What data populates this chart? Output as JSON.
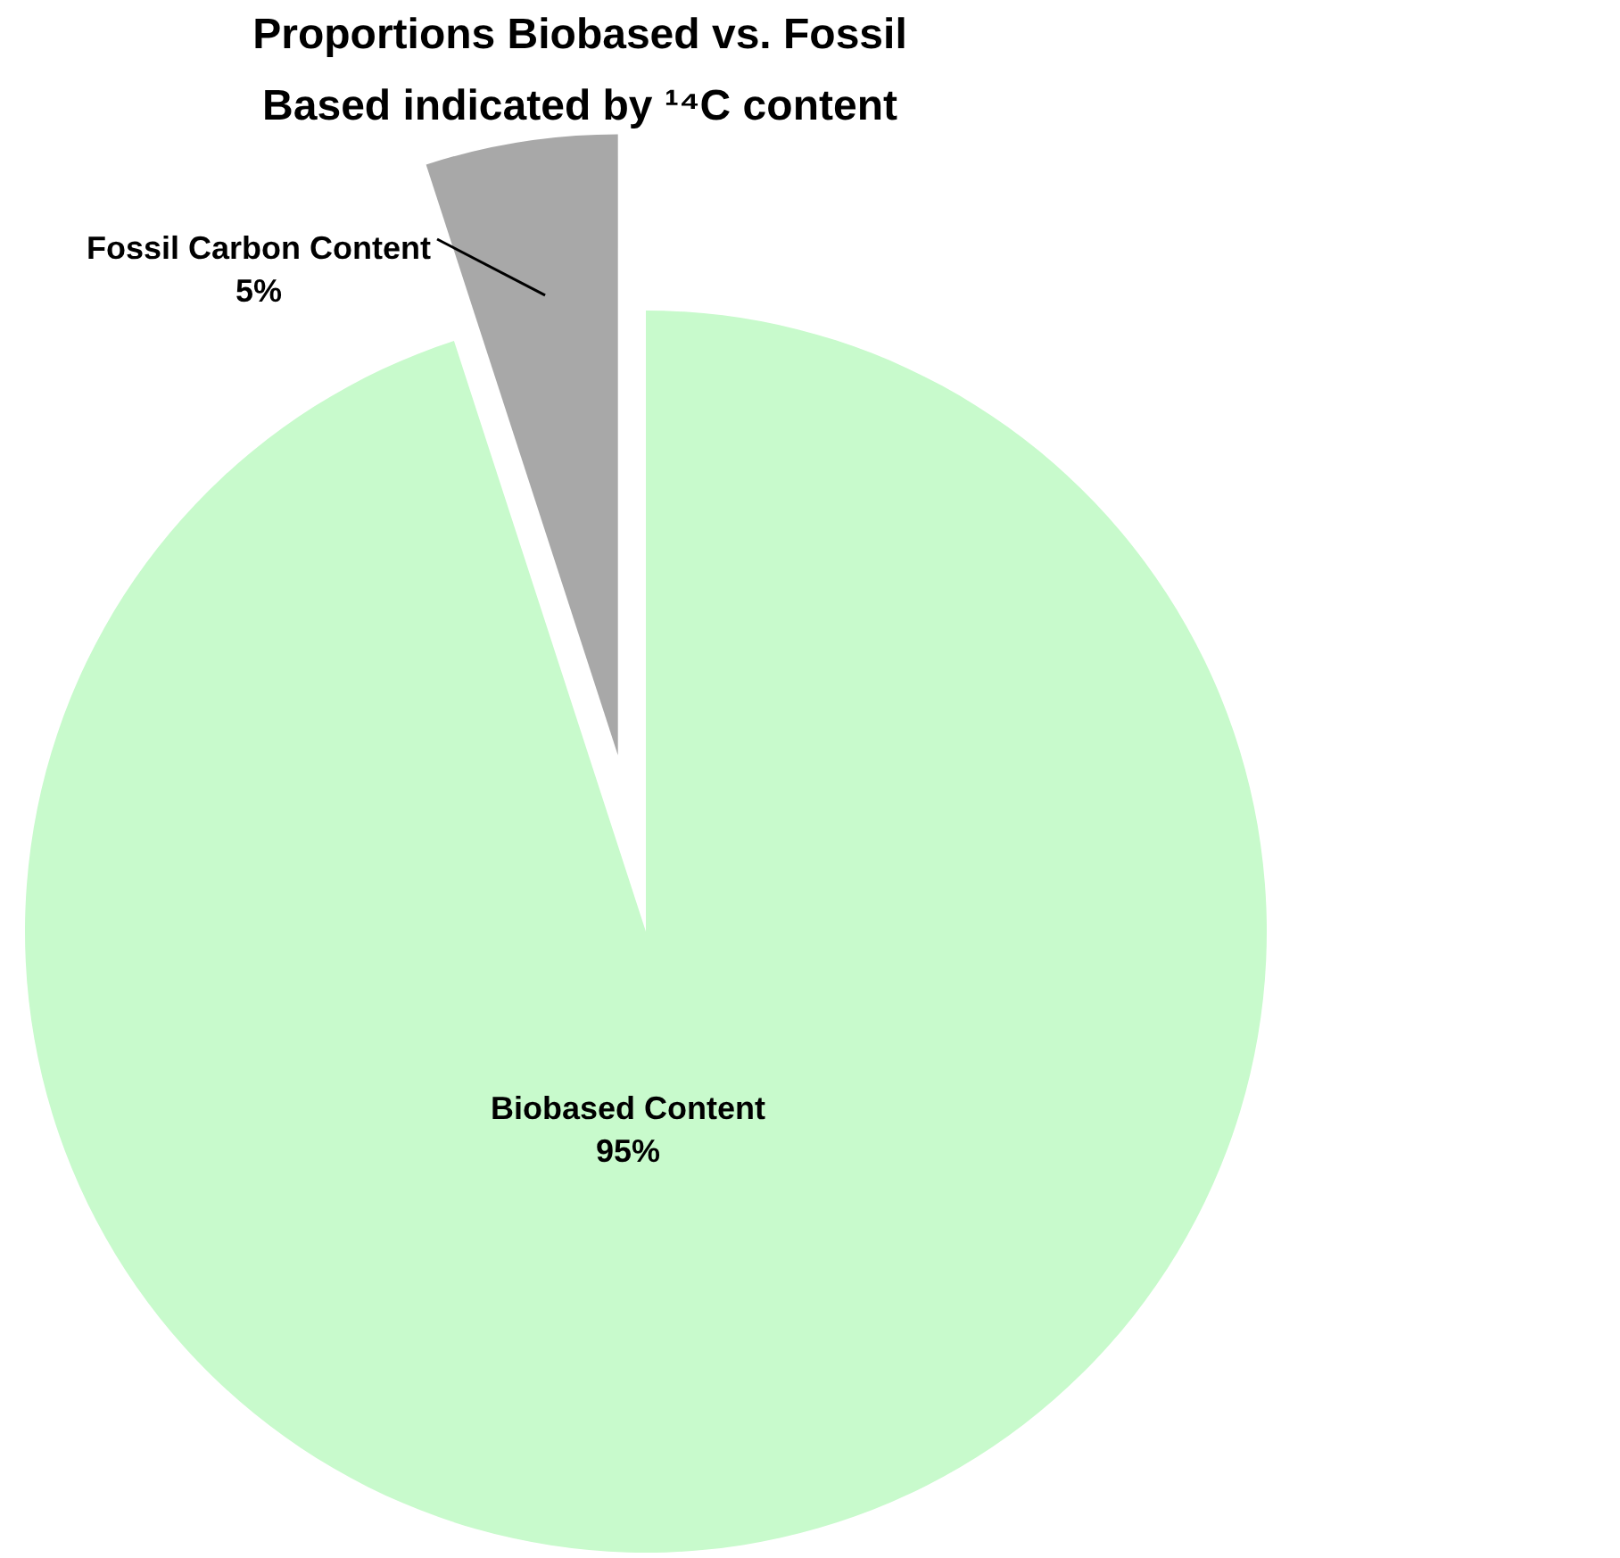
{
  "chart_data": {
    "type": "pie",
    "title": "Proportions Biobased vs. Fossil Based indicated by ¹⁴C content",
    "categories": [
      "Biobased Content",
      "Fossil Carbon Content"
    ],
    "values": [
      95,
      5
    ],
    "colors": [
      "#c8facc",
      "#a8a8a8"
    ],
    "value_labels": [
      "95%",
      "5%"
    ]
  }
}
